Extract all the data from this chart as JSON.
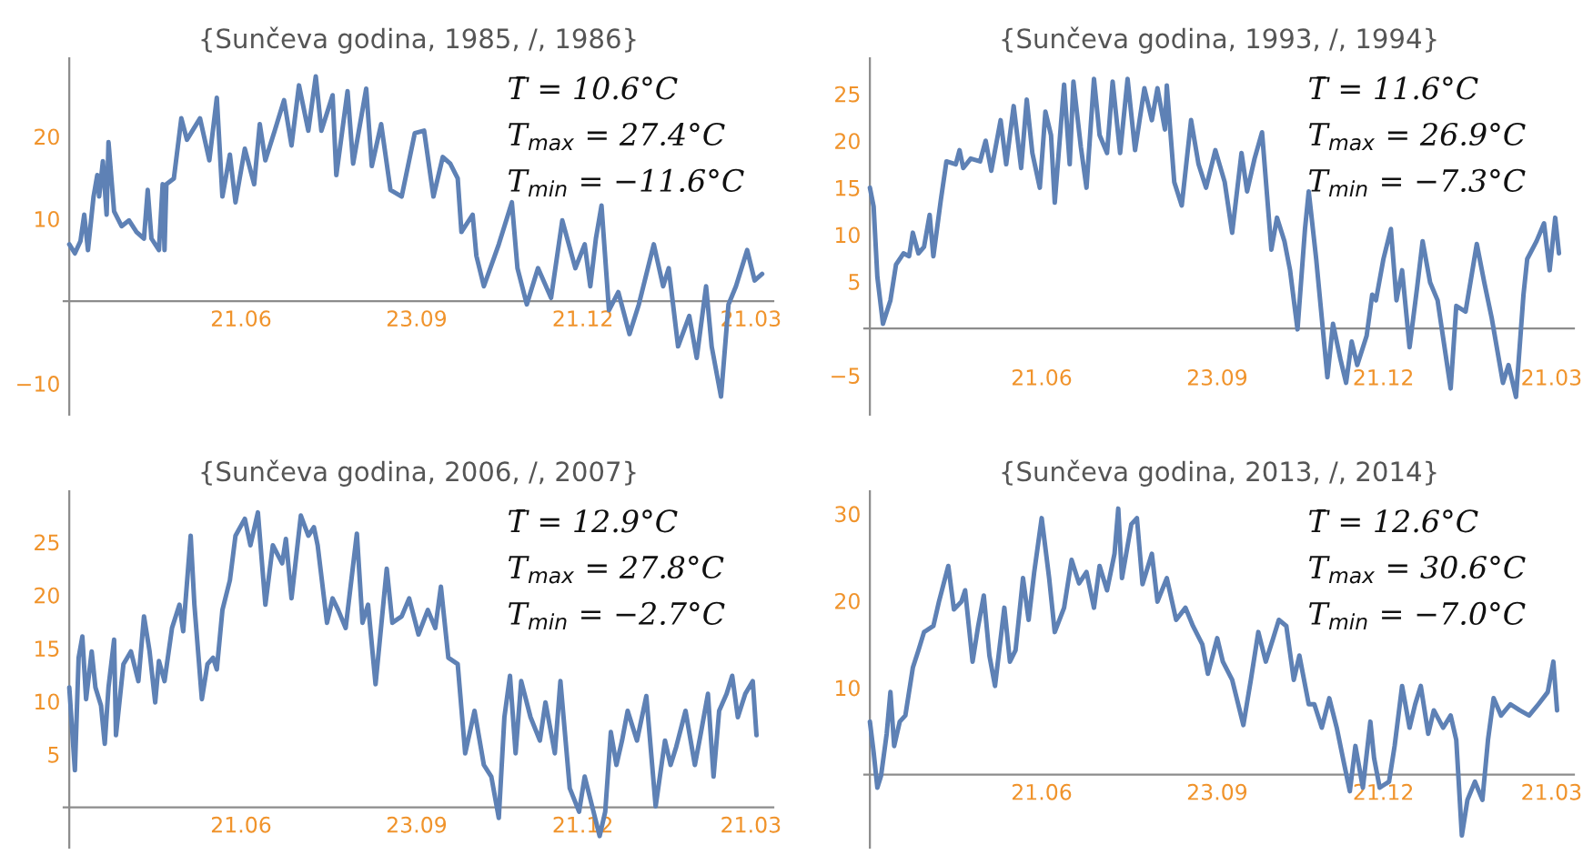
{
  "chart_data": [
    {
      "type": "line",
      "title": "{Sunčeva godina, 1985, /, 1986}",
      "annotations": [
        "T̄ = 10.6°C",
        "T$_{max}$ = 27.4°C",
        "T$_{min}$ = −11.6°C"
      ],
      "xlim": [
        "1985-03-18",
        "1986-04-02"
      ],
      "ylim": [
        -13.8,
        29.5
      ],
      "xticks": [
        {
          "value": "1985-06-21",
          "label": "21.06"
        },
        {
          "value": "1985-09-23",
          "label": "23.09"
        },
        {
          "value": "1985-12-21",
          "label": "21.12"
        },
        {
          "value": "1986-03-21",
          "label": "21.03"
        }
      ],
      "yticks": [
        -10,
        10,
        20
      ],
      "x": [
        "1985-03-21",
        "1985-03-24",
        "1985-03-27",
        "1985-03-29",
        "1985-03-31",
        "1985-04-03",
        "1985-04-05",
        "1985-04-06",
        "1985-04-08",
        "1985-04-10",
        "1985-04-11",
        "1985-04-14",
        "1985-04-18",
        "1985-04-22",
        "1985-04-26",
        "1985-04-30",
        "1985-05-02",
        "1985-05-04",
        "1985-05-08",
        "1985-05-10",
        "1985-05-11",
        "1985-05-12",
        "1985-05-16",
        "1985-05-20",
        "1985-05-23",
        "1985-05-30",
        "1985-06-04",
        "1985-06-08",
        "1985-06-11",
        "1985-06-15",
        "1985-06-18",
        "1985-06-23",
        "1985-06-28",
        "1985-07-01",
        "1985-07-04",
        "1985-07-09",
        "1985-07-14",
        "1985-07-18",
        "1985-07-22",
        "1985-07-27",
        "1985-07-31",
        "1985-08-03",
        "1985-08-09",
        "1985-08-11",
        "1985-08-17",
        "1985-08-20",
        "1985-08-27",
        "1985-08-30",
        "1985-09-04",
        "1985-09-09",
        "1985-09-15",
        "1985-09-22",
        "1985-09-27",
        "1985-10-02",
        "1985-10-07",
        "1985-10-11",
        "1985-10-15",
        "1985-10-17",
        "1985-10-23",
        "1985-10-25",
        "1985-10-29",
        "1985-11-06",
        "1985-11-13",
        "1985-11-16",
        "1985-11-21",
        "1985-11-27",
        "1985-12-04",
        "1985-12-10",
        "1985-12-17",
        "1985-12-22",
        "1985-12-25",
        "1985-12-28",
        "1985-12-31",
        "1986-01-04",
        "1986-01-09",
        "1986-01-15",
        "1986-01-20",
        "1986-01-28",
        "1986-02-02",
        "1986-02-05",
        "1986-02-10",
        "1986-02-16",
        "1986-02-20",
        "1986-02-25",
        "1986-02-28",
        "1986-03-05",
        "1986-03-09",
        "1986-03-13",
        "1986-03-19",
        "1986-03-23",
        "1986-03-27"
      ],
      "series": [
        {
          "color": "#5e81b5",
          "values": [
            6.9,
            5.8,
            7.3,
            10.5,
            6.2,
            12.7,
            15.3,
            12.7,
            17,
            10.5,
            19.3,
            10.9,
            9.1,
            9.8,
            8.4,
            7.6,
            13.5,
            7.6,
            6.2,
            14.2,
            6.2,
            14.2,
            14.9,
            22.2,
            19.6,
            22.2,
            17.1,
            24.7,
            12.7,
            17.8,
            12,
            18.5,
            14.2,
            21.5,
            17.1,
            20.7,
            24.4,
            18.9,
            26.2,
            20.7,
            27.3,
            20.7,
            25,
            15.3,
            25.5,
            16.7,
            25.8,
            16.4,
            21.5,
            13.5,
            12.7,
            20.4,
            20.7,
            12.7,
            17.5,
            16.7,
            14.9,
            8.4,
            10.5,
            5.5,
            1.8,
            6.9,
            12,
            4,
            -0.4,
            4,
            0.4,
            9.8,
            4,
            6.9,
            1.8,
            7.6,
            11.6,
            -1.1,
            1.1,
            -4,
            -0.4,
            6.9,
            1.8,
            4,
            -5.5,
            -1.8,
            -6.9,
            1.8,
            -5.5,
            -11.6,
            -0.4,
            1.8,
            6.2,
            2.5,
            3.3
          ]
        }
      ]
    },
    {
      "type": "line",
      "title": "{Sunčeva godina, 1993, /, 1994}",
      "annotations": [
        "T̄ = 11.6°C",
        "T$_{max}$ = 26.9°C",
        "T$_{min}$ = −7.3°C"
      ],
      "xlim": [
        "1993-03-18",
        "1994-04-02"
      ],
      "ylim": [
        -9.2,
        28.8
      ],
      "xticks": [
        {
          "value": "1993-06-21",
          "label": "21.06"
        },
        {
          "value": "1993-09-23",
          "label": "23.09"
        },
        {
          "value": "1993-12-21",
          "label": "21.12"
        },
        {
          "value": "1994-03-21",
          "label": "21.03"
        }
      ],
      "yticks": [
        -5,
        5,
        10,
        15,
        20,
        25
      ],
      "x": [
        "1993-03-21",
        "1993-03-23",
        "1993-03-25",
        "1993-03-28",
        "1993-04-01",
        "1993-04-04",
        "1993-04-08",
        "1993-04-11",
        "1993-04-13",
        "1993-04-16",
        "1993-04-19",
        "1993-04-22",
        "1993-04-24",
        "1993-04-28",
        "1993-05-01",
        "1993-05-06",
        "1993-05-08",
        "1993-05-10",
        "1993-05-14",
        "1993-05-19",
        "1993-05-22",
        "1993-05-25",
        "1993-05-30",
        "1993-06-02",
        "1993-06-06",
        "1993-06-10",
        "1993-06-13",
        "1993-06-16",
        "1993-06-20",
        "1993-06-23",
        "1993-06-26",
        "1993-06-28",
        "1993-07-03",
        "1993-07-06",
        "1993-07-08",
        "1993-07-12",
        "1993-07-15",
        "1993-07-19",
        "1993-07-22",
        "1993-07-26",
        "1993-07-29",
        "1993-08-02",
        "1993-08-06",
        "1993-08-10",
        "1993-08-15",
        "1993-08-19",
        "1993-08-22",
        "1993-08-26",
        "1993-08-27",
        "1993-08-31",
        "1993-09-04",
        "1993-09-09",
        "1993-09-13",
        "1993-09-17",
        "1993-09-22",
        "1993-09-27",
        "1993-10-01",
        "1993-10-06",
        "1993-10-09",
        "1993-10-13",
        "1993-10-17",
        "1993-10-22",
        "1993-10-25",
        "1993-10-29",
        "1993-11-01",
        "1993-11-05",
        "1993-11-09",
        "1993-11-11",
        "1993-11-15",
        "1993-11-21",
        "1993-11-24",
        "1993-11-28",
        "1993-12-01",
        "1993-12-04",
        "1993-12-07",
        "1993-12-12",
        "1993-12-15",
        "1993-12-17",
        "1993-12-21",
        "1993-12-25",
        "1993-12-28",
        "1993-12-31",
        "1994-01-04",
        "1994-01-08",
        "1994-01-11",
        "1994-01-15",
        "1994-01-19",
        "1994-01-26",
        "1994-01-29",
        "1994-02-03",
        "1994-02-09",
        "1994-02-13",
        "1994-02-17",
        "1994-02-23",
        "1994-02-26",
        "1994-03-02",
        "1994-03-06",
        "1994-03-08",
        "1994-03-13",
        "1994-03-17",
        "1994-03-20",
        "1994-03-23",
        "1994-03-25"
      ],
      "series": [
        {
          "color": "#5e81b5",
          "values": [
            15,
            13,
            5.5,
            0.5,
            3,
            6.8,
            8,
            7.7,
            10.2,
            8,
            8.7,
            12.1,
            7.7,
            13.7,
            17.8,
            17.5,
            19,
            17.1,
            18.1,
            17.8,
            20,
            16.8,
            22.2,
            17.5,
            23.7,
            17.1,
            24.4,
            18.7,
            15,
            23.1,
            20.6,
            13.4,
            26,
            17.5,
            26.3,
            19.3,
            15,
            26.6,
            20.6,
            18.7,
            26.3,
            18.7,
            26.6,
            19,
            25.6,
            22.2,
            25.6,
            21.2,
            25.9,
            15.6,
            13.1,
            22.2,
            17.5,
            15,
            19,
            15.6,
            10.2,
            18.7,
            14.6,
            18.1,
            20.9,
            8.4,
            11.8,
            9.3,
            6.2,
            -0.1,
            10.6,
            14.6,
            7.4,
            -5.2,
            0.5,
            -3.3,
            -5.8,
            -1.4,
            -3.9,
            -0.8,
            3.6,
            3,
            7.4,
            10.6,
            3,
            6.2,
            -2,
            4.3,
            9.3,
            4.9,
            3,
            -6.4,
            2.4,
            1.8,
            9,
            4.9,
            1.1,
            -5.8,
            -3.9,
            -7.3,
            3.6,
            7.4,
            9.3,
            11.2,
            6.2,
            11.8,
            8
          ]
        }
      ]
    },
    {
      "type": "line",
      "title": "{Sunčeva godina, 2006, /, 2007}",
      "annotations": [
        "T̄ = 12.9°C",
        "T$_{max}$ = 27.8°C",
        "T$_{min}$ = −2.7°C"
      ],
      "xlim": [
        "2006-03-18",
        "2007-04-02"
      ],
      "ylim": [
        -3.8,
        29.8
      ],
      "xticks": [
        {
          "value": "2006-06-21",
          "label": "21.06"
        },
        {
          "value": "2006-09-23",
          "label": "23.09"
        },
        {
          "value": "2006-12-21",
          "label": "21.12"
        },
        {
          "value": "2007-03-21",
          "label": "21.03"
        }
      ],
      "yticks": [
        5,
        10,
        15,
        20,
        25
      ],
      "x": [
        "2006-03-21",
        "2006-03-24",
        "2006-03-26",
        "2006-03-28",
        "2006-03-30",
        "2006-04-02",
        "2006-04-04",
        "2006-04-07",
        "2006-04-09",
        "2006-04-11",
        "2006-04-14",
        "2006-04-15",
        "2006-04-19",
        "2006-04-23",
        "2006-04-27",
        "2006-04-30",
        "2006-05-03",
        "2006-05-06",
        "2006-05-08",
        "2006-05-11",
        "2006-05-15",
        "2006-05-19",
        "2006-05-21",
        "2006-05-23",
        "2006-05-25",
        "2006-05-27",
        "2006-05-31",
        "2006-06-03",
        "2006-06-06",
        "2006-06-08",
        "2006-06-11",
        "2006-06-15",
        "2006-06-18",
        "2006-06-23",
        "2006-06-26",
        "2006-06-30",
        "2006-07-04",
        "2006-07-08",
        "2006-07-13",
        "2006-07-15",
        "2006-07-18",
        "2006-07-23",
        "2006-07-27",
        "2006-07-30",
        "2006-08-01",
        "2006-08-06",
        "2006-08-09",
        "2006-08-12",
        "2006-08-16",
        "2006-08-22",
        "2006-08-25",
        "2006-08-28",
        "2006-09-01",
        "2006-09-07",
        "2006-09-10",
        "2006-09-15",
        "2006-09-19",
        "2006-09-24",
        "2006-09-29",
        "2006-10-03",
        "2006-10-06",
        "2006-10-10",
        "2006-10-15",
        "2006-10-19",
        "2006-10-24",
        "2006-10-29",
        "2006-11-02",
        "2006-11-06",
        "2006-11-09",
        "2006-11-12",
        "2006-11-15",
        "2006-11-18",
        "2006-11-23",
        "2006-11-28",
        "2006-12-01",
        "2006-12-06",
        "2006-12-09",
        "2006-12-14",
        "2006-12-19",
        "2006-12-22",
        "2006-12-26",
        "2006-12-30",
        "2007-01-02",
        "2007-01-05",
        "2007-01-08",
        "2007-01-11",
        "2007-01-14",
        "2007-01-19",
        "2007-01-24",
        "2007-01-29",
        "2007-02-03",
        "2007-02-06",
        "2007-02-09",
        "2007-02-14",
        "2007-02-19",
        "2007-02-22",
        "2007-02-26",
        "2007-03-01",
        "2007-03-04",
        "2007-03-08",
        "2007-03-11",
        "2007-03-14",
        "2007-03-18",
        "2007-03-22",
        "2007-03-24"
      ],
      "series": [
        {
          "color": "#5e81b5",
          "values": [
            11.3,
            3.5,
            14.1,
            16.1,
            10.2,
            14.7,
            11.3,
            9.6,
            6,
            11.3,
            15.8,
            6.8,
            13.5,
            14.7,
            11.9,
            18,
            14.7,
            9.9,
            13.8,
            11.9,
            16.9,
            19.1,
            16.6,
            21.1,
            25.6,
            19.1,
            10.2,
            13.5,
            14.1,
            13,
            18.6,
            21.4,
            25.6,
            27.2,
            24.7,
            27.8,
            19.1,
            24.7,
            23,
            25.3,
            19.7,
            27.5,
            25.6,
            26.4,
            24.7,
            17.4,
            19.7,
            18.6,
            16.9,
            25.8,
            17.4,
            19.1,
            11.6,
            22.5,
            17.4,
            18,
            19.7,
            16.3,
            18.6,
            16.9,
            20.8,
            14.1,
            13.5,
            5.1,
            9.1,
            4,
            2.9,
            -1,
            8.5,
            12.4,
            5.1,
            11.9,
            8.5,
            6.3,
            9.9,
            5.1,
            11.9,
            1.8,
            -0.4,
            2.9,
            0.1,
            -2.7,
            -0.4,
            7.1,
            4,
            6.3,
            9.1,
            6.3,
            10.5,
            0.1,
            6.3,
            4,
            5.7,
            9.1,
            4,
            6.8,
            10.7,
            2.9,
            9.1,
            10.7,
            12.4,
            8.5,
            10.7,
            11.9,
            6.8
          ]
        }
      ]
    },
    {
      "type": "line",
      "title": "{Sunčeva godina, 2013, /, 2014}",
      "annotations": [
        "T̄ = 12.6°C",
        "T$_{max}$ = 30.6°C",
        "T$_{min}$ = −7.0°C"
      ],
      "xlim": [
        "2013-03-18",
        "2014-04-02"
      ],
      "ylim": [
        -8.4,
        32.6
      ],
      "xticks": [
        {
          "value": "2013-06-21",
          "label": "21.06"
        },
        {
          "value": "2013-09-23",
          "label": "23.09"
        },
        {
          "value": "2013-12-21",
          "label": "21.12"
        },
        {
          "value": "2014-03-21",
          "label": "21.03"
        }
      ],
      "yticks": [
        10,
        20,
        30
      ],
      "x": [
        "2013-03-21",
        "2013-03-23",
        "2013-03-25",
        "2013-03-27",
        "2013-03-30",
        "2013-04-01",
        "2013-04-03",
        "2013-04-06",
        "2013-04-09",
        "2013-04-13",
        "2013-04-16",
        "2013-04-19",
        "2013-04-24",
        "2013-04-27",
        "2013-05-02",
        "2013-05-05",
        "2013-05-09",
        "2013-05-11",
        "2013-05-15",
        "2013-05-18",
        "2013-05-21",
        "2013-05-24",
        "2013-05-27",
        "2013-06-01",
        "2013-06-04",
        "2013-06-07",
        "2013-06-11",
        "2013-06-14",
        "2013-06-17",
        "2013-06-21",
        "2013-06-25",
        "2013-06-28",
        "2013-07-03",
        "2013-07-07",
        "2013-07-11",
        "2013-07-15",
        "2013-07-19",
        "2013-07-22",
        "2013-07-26",
        "2013-07-30",
        "2013-08-01",
        "2013-08-03",
        "2013-08-08",
        "2013-08-11",
        "2013-08-14",
        "2013-08-19",
        "2013-08-22",
        "2013-08-27",
        "2013-09-01",
        "2013-09-06",
        "2013-09-10",
        "2013-09-15",
        "2013-09-18",
        "2013-09-23",
        "2013-09-26",
        "2013-10-01",
        "2013-10-07",
        "2013-10-11",
        "2013-10-15",
        "2013-10-19",
        "2013-10-23",
        "2013-10-26",
        "2013-10-30",
        "2013-11-03",
        "2013-11-06",
        "2013-11-11",
        "2013-11-14",
        "2013-11-18",
        "2013-11-22",
        "2013-11-26",
        "2013-11-30",
        "2013-12-03",
        "2013-12-06",
        "2013-12-10",
        "2013-12-14",
        "2013-12-16",
        "2013-12-19",
        "2013-12-24",
        "2013-12-27",
        "2013-12-31",
        "2014-01-04",
        "2014-01-07",
        "2014-01-10",
        "2014-01-14",
        "2014-01-17",
        "2014-01-22",
        "2014-01-26",
        "2014-01-29",
        "2014-02-01",
        "2014-02-04",
        "2014-02-08",
        "2014-02-12",
        "2014-02-15",
        "2014-02-18",
        "2014-02-22",
        "2014-02-27",
        "2014-03-04",
        "2014-03-09",
        "2014-03-14",
        "2014-03-19",
        "2014-03-22",
        "2014-03-24"
      ],
      "series": [
        {
          "color": "#5e81b5",
          "values": [
            6.1,
            2.6,
            -1.5,
            -0.1,
            4.7,
            9.5,
            3.3,
            6.1,
            6.8,
            12.3,
            14.3,
            16.4,
            17.1,
            19.9,
            24,
            19,
            19.9,
            21.2,
            13,
            17.1,
            20.6,
            13.7,
            10.2,
            19.2,
            13,
            14.3,
            22.6,
            17.8,
            23.3,
            29.5,
            22.6,
            16.4,
            19.2,
            24.7,
            22,
            23.3,
            19.2,
            24,
            21.2,
            25.4,
            30.6,
            22.6,
            28.8,
            29.5,
            21.9,
            25.4,
            19.9,
            22.6,
            17.8,
            19.2,
            17.1,
            15,
            11.6,
            15.7,
            13,
            10.9,
            5.7,
            10.9,
            16.4,
            13,
            15.7,
            17.8,
            17.1,
            10.9,
            13.7,
            8.1,
            8.1,
            5.4,
            8.8,
            5.4,
            1.2,
            -1.9,
            3.3,
            -1.5,
            6.1,
            1.9,
            -1.5,
            -0.8,
            3.3,
            10.2,
            5.4,
            8.1,
            10.2,
            4.7,
            7.4,
            5.4,
            6.8,
            4,
            -7,
            -2.9,
            -0.8,
            -2.9,
            4,
            8.8,
            6.8,
            8.1,
            7.4,
            6.8,
            8.1,
            9.5,
            13,
            7.4
          ]
        }
      ]
    }
  ]
}
